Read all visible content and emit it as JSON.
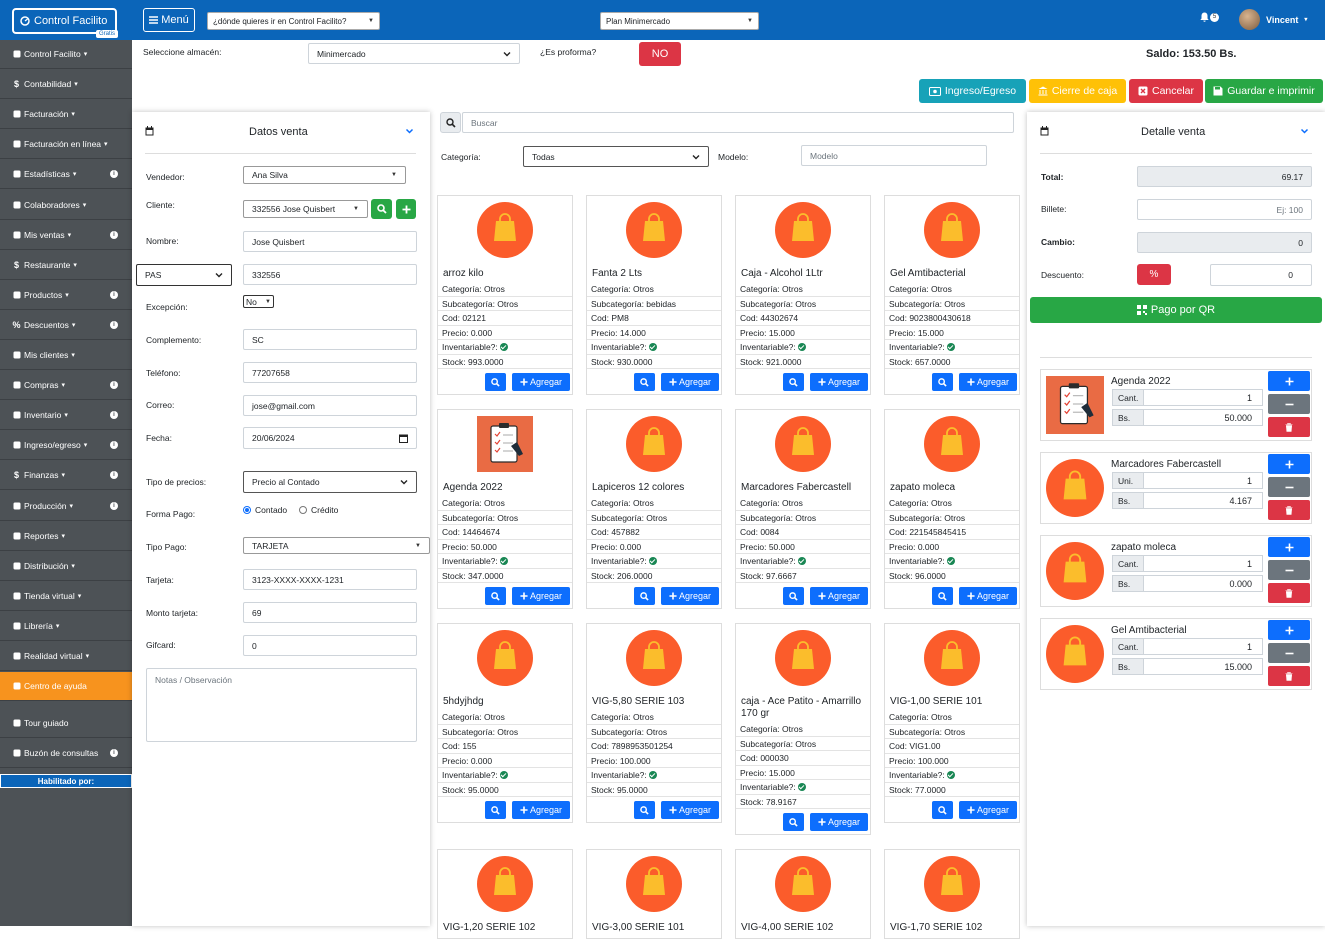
{
  "topbar": {
    "brand": "Control Facilito",
    "brand_badge": "Gratis",
    "menu_label": "Menú",
    "nav_select": "¿dónde quieres ir en Control Facilito?",
    "plan_select": "Plan Minimercado",
    "notif_count": "5",
    "user_name": "Vincent"
  },
  "sidebar": {
    "items": [
      {
        "label": "Control Facilito",
        "icon": "chart-icon"
      },
      {
        "label": "Contabilidad",
        "icon": "dollar-icon"
      },
      {
        "label": "Facturación",
        "icon": "bank-icon"
      },
      {
        "label": "Facturación en línea",
        "icon": "bank-icon"
      },
      {
        "label": "Estadísticas",
        "icon": "chart-icon"
      },
      {
        "label": "Colaboradores",
        "icon": "user-plus-icon"
      },
      {
        "label": "Mis ventas",
        "icon": "wallet-icon"
      },
      {
        "label": "Restaurante",
        "icon": "dollar-icon"
      },
      {
        "label": "Productos",
        "icon": "cubes-icon"
      },
      {
        "label": "Descuentos",
        "icon": "percent-icon"
      },
      {
        "label": "Mis clientes",
        "icon": "users-icon"
      },
      {
        "label": "Compras",
        "icon": "bag-icon"
      },
      {
        "label": "Inventario",
        "icon": "truck-icon"
      },
      {
        "label": "Ingreso/egreso",
        "icon": "cycle-icon"
      },
      {
        "label": "Finanzas",
        "icon": "dollar-icon"
      },
      {
        "label": "Producción",
        "icon": "gears-icon"
      },
      {
        "label": "Reportes",
        "icon": "file-icon"
      },
      {
        "label": "Distribución",
        "icon": "truck-icon"
      },
      {
        "label": "Tienda virtual",
        "icon": "store-icon"
      },
      {
        "label": "Librería",
        "icon": "book-icon"
      },
      {
        "label": "Realidad virtual",
        "icon": "vr-icon"
      },
      {
        "label": "Centro de ayuda",
        "icon": "lifebuoy-icon"
      },
      {
        "label": "Tour guiado",
        "icon": "play-icon"
      },
      {
        "label": "Buzón de consultas",
        "icon": "envelope-icon"
      }
    ],
    "habilitado": "Habilitado por:"
  },
  "header": {
    "almacen_label": "Seleccione almacén:",
    "almacen_value": "Minimercado",
    "proforma_label": "¿Es proforma?",
    "proforma_value": "NO",
    "saldo": "Saldo: 153.50 Bs.",
    "btn_ingreso": "Ingreso/Egreso",
    "btn_cierre": "Cierre de caja",
    "btn_cancelar": "Cancelar",
    "btn_guardar": "Guardar e imprimir"
  },
  "datos_venta": {
    "title": "Datos venta",
    "vendedor_label": "Vendedor:",
    "vendedor": "Ana Silva",
    "cliente_label": "Cliente:",
    "cliente": "332556 Jose Quisbert",
    "nombre_label": "Nombre:",
    "nombre": "Jose Quisbert",
    "doc_type": "PAS",
    "doc_number": "332556",
    "excepcion_label": "Excepción:",
    "excepcion": "No",
    "complemento_label": "Complemento:",
    "complemento": "SC",
    "telefono_label": "Teléfono:",
    "telefono": "77207658",
    "correo_label": "Correo:",
    "correo": "jose@gmail.com",
    "fecha_label": "Fecha:",
    "fecha": "20/06/2024",
    "tipo_precios_label": "Tipo de precios:",
    "tipo_precios": "Precio al Contado",
    "forma_pago_label": "Forma Pago:",
    "forma_contado": "Contado",
    "forma_credito": "Crédito",
    "tipo_pago_label": "Tipo Pago:",
    "tipo_pago": "TARJETA",
    "tarjeta_label": "Tarjeta:",
    "tarjeta": "3123-XXXX-XXXX-1231",
    "monto_label": "Monto tarjeta:",
    "monto": "69",
    "gifcard_label": "Gifcard:",
    "gifcard": "0",
    "notas_placeholder": "Notas / Observación"
  },
  "catalog": {
    "search_placeholder": "Buscar",
    "categoria_label": "Categoría:",
    "categoria": "Todas",
    "modelo_label": "Modelo:",
    "modelo_placeholder": "Modelo",
    "add_label": "Agregar",
    "inventariable_label": "Inventariable?:",
    "products": [
      {
        "name": "arroz kilo",
        "cat": "Categoría: Otros",
        "sub": "Subcategoría: Otros",
        "cod": "Cod: 02121",
        "precio": "Precio: 0.000",
        "stock": "Stock: 993.0000",
        "img": "bag"
      },
      {
        "name": "Fanta 2 Lts",
        "cat": "Categoría: Otros",
        "sub": "Subcategoría: bebidas",
        "cod": "Cod: PM8",
        "precio": "Precio: 14.000",
        "stock": "Stock: 930.0000",
        "img": "bag"
      },
      {
        "name": "Caja - Alcohol 1Ltr",
        "cat": "Categoría: Otros",
        "sub": "Subcategoría: Otros",
        "cod": "Cod: 44302674",
        "precio": "Precio: 15.000",
        "stock": "Stock: 921.0000",
        "img": "bag"
      },
      {
        "name": "Gel Amtibacterial",
        "cat": "Categoría: Otros",
        "sub": "Subcategoría: Otros",
        "cod": "Cod: 9023800430618",
        "precio": "Precio: 15.000",
        "stock": "Stock: 657.0000",
        "img": "bag"
      },
      {
        "name": "Agenda 2022",
        "cat": "Categoría: Otros",
        "sub": "Subcategoría: Otros",
        "cod": "Cod: 14464674",
        "precio": "Precio: 50.000",
        "stock": "Stock: 347.0000",
        "img": "agenda"
      },
      {
        "name": "Lapiceros 12 colores",
        "cat": "Categoría: Otros",
        "sub": "Subcategoría: Otros",
        "cod": "Cod: 457882",
        "precio": "Precio: 0.000",
        "stock": "Stock: 206.0000",
        "img": "bag"
      },
      {
        "name": "Marcadores Fabercastell",
        "cat": "Categoría: Otros",
        "sub": "Subcategoría: Otros",
        "cod": "Cod: 0084",
        "precio": "Precio: 50.000",
        "stock": "Stock: 97.6667",
        "img": "bag"
      },
      {
        "name": "zapato moleca",
        "cat": "Categoría: Otros",
        "sub": "Subcategoría: Otros",
        "cod": "Cod: 221545845415",
        "precio": "Precio: 0.000",
        "stock": "Stock: 96.0000",
        "img": "bag"
      },
      {
        "name": "5hdyjhdg",
        "cat": "Categoría: Otros",
        "sub": "Subcategoría: Otros",
        "cod": "Cod: 155",
        "precio": "Precio: 0.000",
        "stock": "Stock: 95.0000",
        "img": "bag"
      },
      {
        "name": "VIG-5,80 SERIE 103",
        "cat": "Categoría: Otros",
        "sub": "Subcategoría: Otros",
        "cod": "Cod: 7898953501254",
        "precio": "Precio: 100.000",
        "stock": "Stock: 95.0000",
        "img": "bag"
      },
      {
        "name": "caja - Ace Patito - Amarrillo 170 gr",
        "cat": "Categoría: Otros",
        "sub": "Subcategoría: Otros",
        "cod": "Cod: 000030",
        "precio": "Precio: 15.000",
        "stock": "Stock: 78.9167",
        "img": "bag"
      },
      {
        "name": "VIG-1,00 SERIE 101",
        "cat": "Categoría: Otros",
        "sub": "Subcategoría: Otros",
        "cod": "Cod: VIG1.00",
        "precio": "Precio: 100.000",
        "stock": "Stock: 77.0000",
        "img": "bag"
      },
      {
        "name": "VIG-1,20 SERIE 102",
        "cat": "",
        "sub": "",
        "cod": "",
        "precio": "",
        "stock": "",
        "img": "bag"
      },
      {
        "name": "VIG-3,00 SERIE 101",
        "cat": "",
        "sub": "",
        "cod": "",
        "precio": "",
        "stock": "",
        "img": "bag"
      },
      {
        "name": "VIG-4,00 SERIE 102",
        "cat": "",
        "sub": "",
        "cod": "",
        "precio": "",
        "stock": "",
        "img": "bag"
      },
      {
        "name": "VIG-1,70 SERIE 102",
        "cat": "",
        "sub": "",
        "cod": "",
        "precio": "",
        "stock": "",
        "img": "bag"
      }
    ]
  },
  "detalle": {
    "title": "Detalle venta",
    "total_label": "Total:",
    "total": "69.17",
    "billete_label": "Billete:",
    "billete_placeholder": "Ej: 100",
    "cambio_label": "Cambio:",
    "cambio": "0",
    "descuento_label": "Descuento:",
    "descuento_btn": "%",
    "descuento": "0",
    "qr_btn": "Pago por QR",
    "items": [
      {
        "name": "Agenda 2022",
        "qlabel": "Cant.",
        "qty": "1",
        "plabel": "Bs.",
        "price": "50.000",
        "img": "agenda"
      },
      {
        "name": "Marcadores Fabercastell",
        "qlabel": "Uni.",
        "qty": "1",
        "plabel": "Bs.",
        "price": "4.167",
        "img": "bag"
      },
      {
        "name": "zapato moleca",
        "qlabel": "Cant.",
        "qty": "1",
        "plabel": "Bs.",
        "price": "0.000",
        "img": "bag"
      },
      {
        "name": "Gel Amtibacterial",
        "qlabel": "Cant.",
        "qty": "1",
        "plabel": "Bs.",
        "price": "15.000",
        "img": "bag"
      }
    ]
  },
  "colors": {
    "primary": "#0b65b9",
    "accent": "#f7931e",
    "teal": "#17a2b8",
    "warning": "#ffc107",
    "danger": "#dc3545",
    "success": "#28a745",
    "blue": "#0d6efd"
  }
}
